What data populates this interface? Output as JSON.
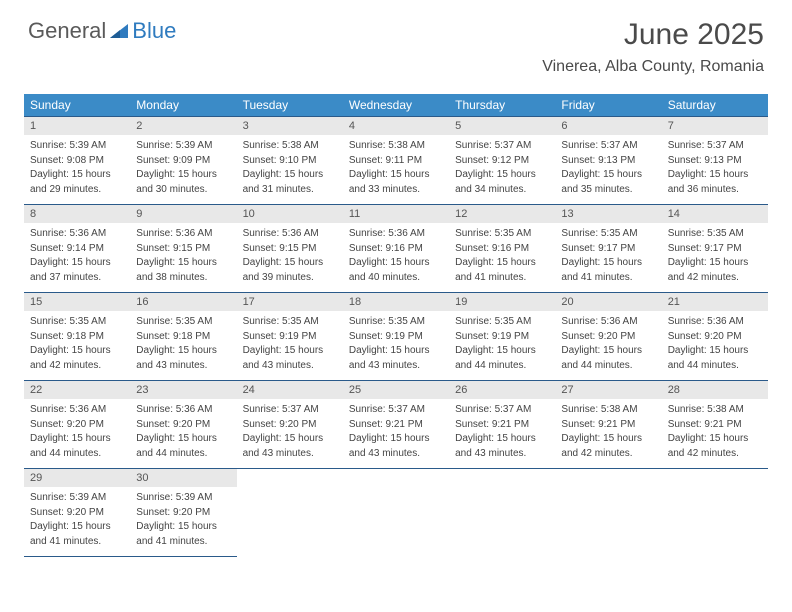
{
  "branding": {
    "logo_word1": "General",
    "logo_word2": "Blue",
    "logo_color_gray": "#5a5a5a",
    "logo_color_blue": "#2f7bbf"
  },
  "header": {
    "month_title": "June 2025",
    "location": "Vinerea, Alba County, Romania"
  },
  "colors": {
    "header_row_bg": "#3b8bc7",
    "header_row_text": "#ffffff",
    "daynum_bg": "#e8e8e8",
    "daynum_text": "#555555",
    "cell_border": "#2a5a8a",
    "body_text": "#444444",
    "page_bg": "#ffffff"
  },
  "day_headers": [
    "Sunday",
    "Monday",
    "Tuesday",
    "Wednesday",
    "Thursday",
    "Friday",
    "Saturday"
  ],
  "weeks": [
    [
      {
        "num": "1",
        "sunrise": "Sunrise: 5:39 AM",
        "sunset": "Sunset: 9:08 PM",
        "daylight1": "Daylight: 15 hours",
        "daylight2": "and 29 minutes."
      },
      {
        "num": "2",
        "sunrise": "Sunrise: 5:39 AM",
        "sunset": "Sunset: 9:09 PM",
        "daylight1": "Daylight: 15 hours",
        "daylight2": "and 30 minutes."
      },
      {
        "num": "3",
        "sunrise": "Sunrise: 5:38 AM",
        "sunset": "Sunset: 9:10 PM",
        "daylight1": "Daylight: 15 hours",
        "daylight2": "and 31 minutes."
      },
      {
        "num": "4",
        "sunrise": "Sunrise: 5:38 AM",
        "sunset": "Sunset: 9:11 PM",
        "daylight1": "Daylight: 15 hours",
        "daylight2": "and 33 minutes."
      },
      {
        "num": "5",
        "sunrise": "Sunrise: 5:37 AM",
        "sunset": "Sunset: 9:12 PM",
        "daylight1": "Daylight: 15 hours",
        "daylight2": "and 34 minutes."
      },
      {
        "num": "6",
        "sunrise": "Sunrise: 5:37 AM",
        "sunset": "Sunset: 9:13 PM",
        "daylight1": "Daylight: 15 hours",
        "daylight2": "and 35 minutes."
      },
      {
        "num": "7",
        "sunrise": "Sunrise: 5:37 AM",
        "sunset": "Sunset: 9:13 PM",
        "daylight1": "Daylight: 15 hours",
        "daylight2": "and 36 minutes."
      }
    ],
    [
      {
        "num": "8",
        "sunrise": "Sunrise: 5:36 AM",
        "sunset": "Sunset: 9:14 PM",
        "daylight1": "Daylight: 15 hours",
        "daylight2": "and 37 minutes."
      },
      {
        "num": "9",
        "sunrise": "Sunrise: 5:36 AM",
        "sunset": "Sunset: 9:15 PM",
        "daylight1": "Daylight: 15 hours",
        "daylight2": "and 38 minutes."
      },
      {
        "num": "10",
        "sunrise": "Sunrise: 5:36 AM",
        "sunset": "Sunset: 9:15 PM",
        "daylight1": "Daylight: 15 hours",
        "daylight2": "and 39 minutes."
      },
      {
        "num": "11",
        "sunrise": "Sunrise: 5:36 AM",
        "sunset": "Sunset: 9:16 PM",
        "daylight1": "Daylight: 15 hours",
        "daylight2": "and 40 minutes."
      },
      {
        "num": "12",
        "sunrise": "Sunrise: 5:35 AM",
        "sunset": "Sunset: 9:16 PM",
        "daylight1": "Daylight: 15 hours",
        "daylight2": "and 41 minutes."
      },
      {
        "num": "13",
        "sunrise": "Sunrise: 5:35 AM",
        "sunset": "Sunset: 9:17 PM",
        "daylight1": "Daylight: 15 hours",
        "daylight2": "and 41 minutes."
      },
      {
        "num": "14",
        "sunrise": "Sunrise: 5:35 AM",
        "sunset": "Sunset: 9:17 PM",
        "daylight1": "Daylight: 15 hours",
        "daylight2": "and 42 minutes."
      }
    ],
    [
      {
        "num": "15",
        "sunrise": "Sunrise: 5:35 AM",
        "sunset": "Sunset: 9:18 PM",
        "daylight1": "Daylight: 15 hours",
        "daylight2": "and 42 minutes."
      },
      {
        "num": "16",
        "sunrise": "Sunrise: 5:35 AM",
        "sunset": "Sunset: 9:18 PM",
        "daylight1": "Daylight: 15 hours",
        "daylight2": "and 43 minutes."
      },
      {
        "num": "17",
        "sunrise": "Sunrise: 5:35 AM",
        "sunset": "Sunset: 9:19 PM",
        "daylight1": "Daylight: 15 hours",
        "daylight2": "and 43 minutes."
      },
      {
        "num": "18",
        "sunrise": "Sunrise: 5:35 AM",
        "sunset": "Sunset: 9:19 PM",
        "daylight1": "Daylight: 15 hours",
        "daylight2": "and 43 minutes."
      },
      {
        "num": "19",
        "sunrise": "Sunrise: 5:35 AM",
        "sunset": "Sunset: 9:19 PM",
        "daylight1": "Daylight: 15 hours",
        "daylight2": "and 44 minutes."
      },
      {
        "num": "20",
        "sunrise": "Sunrise: 5:36 AM",
        "sunset": "Sunset: 9:20 PM",
        "daylight1": "Daylight: 15 hours",
        "daylight2": "and 44 minutes."
      },
      {
        "num": "21",
        "sunrise": "Sunrise: 5:36 AM",
        "sunset": "Sunset: 9:20 PM",
        "daylight1": "Daylight: 15 hours",
        "daylight2": "and 44 minutes."
      }
    ],
    [
      {
        "num": "22",
        "sunrise": "Sunrise: 5:36 AM",
        "sunset": "Sunset: 9:20 PM",
        "daylight1": "Daylight: 15 hours",
        "daylight2": "and 44 minutes."
      },
      {
        "num": "23",
        "sunrise": "Sunrise: 5:36 AM",
        "sunset": "Sunset: 9:20 PM",
        "daylight1": "Daylight: 15 hours",
        "daylight2": "and 44 minutes."
      },
      {
        "num": "24",
        "sunrise": "Sunrise: 5:37 AM",
        "sunset": "Sunset: 9:20 PM",
        "daylight1": "Daylight: 15 hours",
        "daylight2": "and 43 minutes."
      },
      {
        "num": "25",
        "sunrise": "Sunrise: 5:37 AM",
        "sunset": "Sunset: 9:21 PM",
        "daylight1": "Daylight: 15 hours",
        "daylight2": "and 43 minutes."
      },
      {
        "num": "26",
        "sunrise": "Sunrise: 5:37 AM",
        "sunset": "Sunset: 9:21 PM",
        "daylight1": "Daylight: 15 hours",
        "daylight2": "and 43 minutes."
      },
      {
        "num": "27",
        "sunrise": "Sunrise: 5:38 AM",
        "sunset": "Sunset: 9:21 PM",
        "daylight1": "Daylight: 15 hours",
        "daylight2": "and 42 minutes."
      },
      {
        "num": "28",
        "sunrise": "Sunrise: 5:38 AM",
        "sunset": "Sunset: 9:21 PM",
        "daylight1": "Daylight: 15 hours",
        "daylight2": "and 42 minutes."
      }
    ],
    [
      {
        "num": "29",
        "sunrise": "Sunrise: 5:39 AM",
        "sunset": "Sunset: 9:20 PM",
        "daylight1": "Daylight: 15 hours",
        "daylight2": "and 41 minutes."
      },
      {
        "num": "30",
        "sunrise": "Sunrise: 5:39 AM",
        "sunset": "Sunset: 9:20 PM",
        "daylight1": "Daylight: 15 hours",
        "daylight2": "and 41 minutes."
      },
      null,
      null,
      null,
      null,
      null
    ]
  ]
}
